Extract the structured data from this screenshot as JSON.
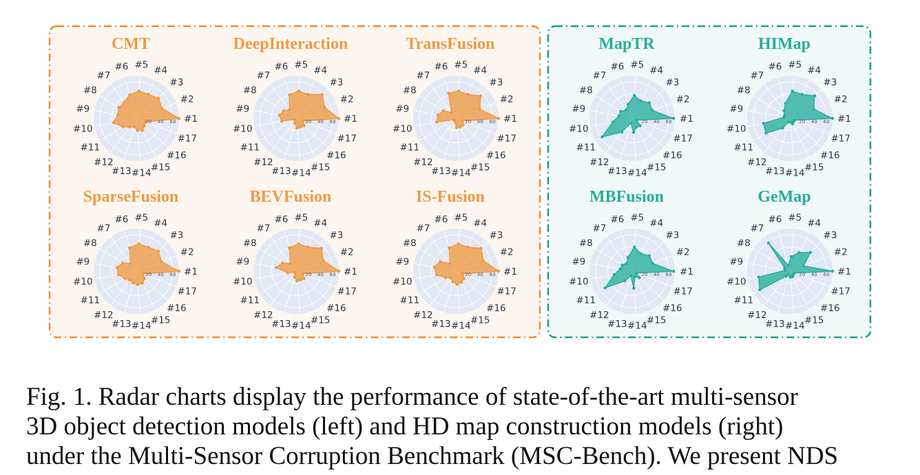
{
  "colors": {
    "left_panel_border": "#ef8b2c",
    "left_panel_bg": "#fdf6f0",
    "right_panel_border": "#1a9e8f",
    "right_panel_bg": "#f1f8f8",
    "radar_bg": "#e2e8f4",
    "orange": "#ef9a43",
    "teal": "#26ae9e"
  },
  "caption": {
    "line1": "Fig. 1.  Radar charts display the performance of state-of-the-art multi-sensor",
    "line2": "3D object detection models (left) and HD map construction models (right)",
    "line3": "under the Multi-Sensor Corruption Benchmark (MSC-Bench). We present NDS"
  },
  "chart_data": [
    {
      "type": "radar",
      "title": "CMT",
      "color": "orange",
      "categories": [
        "#1",
        "#2",
        "#3",
        "#4",
        "#5",
        "#6",
        "#7",
        "#8",
        "#9",
        "#10",
        "#11",
        "#12",
        "#13",
        "#14",
        "#15",
        "#16",
        "#17"
      ],
      "radial_ticks": [
        "20",
        "40",
        "60"
      ],
      "rlim": [
        0,
        70
      ],
      "values": [
        70,
        45,
        49,
        44,
        45,
        40,
        33,
        34,
        31,
        38,
        26,
        18,
        14,
        20,
        22,
        18,
        16
      ]
    },
    {
      "type": "radar",
      "title": "DeepInteraction",
      "color": "orange",
      "categories": [
        "#1",
        "#2",
        "#3",
        "#4",
        "#5",
        "#6",
        "#7",
        "#8",
        "#9",
        "#10",
        "#11",
        "#12",
        "#13",
        "#14",
        "#15",
        "#16",
        "#17"
      ],
      "radial_ticks": [
        "20",
        "40",
        "60"
      ],
      "rlim": [
        0,
        70
      ],
      "values": [
        70,
        50,
        58,
        44,
        45,
        40,
        18,
        24,
        28,
        24,
        3,
        3,
        8,
        16,
        16,
        18,
        12
      ]
    },
    {
      "type": "radar",
      "title": "TransFusion",
      "color": "orange",
      "categories": [
        "#1",
        "#2",
        "#3",
        "#4",
        "#5",
        "#6",
        "#7",
        "#8",
        "#9",
        "#10",
        "#11",
        "#12",
        "#13",
        "#14",
        "#15",
        "#16",
        "#17"
      ],
      "radial_ticks": [
        "20",
        "40",
        "60"
      ],
      "rlim": [
        0,
        70
      ],
      "values": [
        70,
        42,
        55,
        44,
        45,
        43,
        12,
        24,
        30,
        32,
        4,
        3,
        6,
        15,
        16,
        16,
        12
      ]
    },
    {
      "type": "radar",
      "title": "MapTR",
      "color": "teal",
      "categories": [
        "#1",
        "#2",
        "#3",
        "#4",
        "#5",
        "#6",
        "#7",
        "#8",
        "#9",
        "#10",
        "#11",
        "#12",
        "#13",
        "#14",
        "#15",
        "#16",
        "#17"
      ],
      "radial_ticks": [
        "20",
        "40",
        "60"
      ],
      "rlim": [
        0,
        70
      ],
      "values": [
        68,
        36,
        38,
        32,
        38,
        24,
        17,
        22,
        22,
        32,
        58,
        28,
        8,
        23,
        16,
        18,
        8
      ]
    },
    {
      "type": "radar",
      "title": "HIMap",
      "color": "teal",
      "categories": [
        "#1",
        "#2",
        "#3",
        "#4",
        "#5",
        "#6",
        "#7",
        "#8",
        "#9",
        "#10",
        "#11",
        "#12",
        "#13",
        "#14",
        "#15",
        "#16",
        "#17"
      ],
      "radial_ticks": [
        "20",
        "40",
        "60"
      ],
      "rlim": [
        0,
        70
      ],
      "values": [
        70,
        42,
        55,
        44,
        45,
        26,
        16,
        10,
        10,
        44,
        46,
        20,
        6,
        6,
        10,
        8,
        8
      ]
    },
    {
      "type": "radar",
      "title": "SparseFusion",
      "color": "orange",
      "categories": [
        "#1",
        "#2",
        "#3",
        "#4",
        "#5",
        "#6",
        "#7",
        "#8",
        "#9",
        "#10",
        "#11",
        "#12",
        "#13",
        "#14",
        "#15",
        "#16",
        "#17"
      ],
      "radial_ticks": [
        "20",
        "40",
        "60"
      ],
      "rlim": [
        0,
        70
      ],
      "values": [
        70,
        44,
        49,
        44,
        45,
        40,
        16,
        26,
        32,
        30,
        22,
        18,
        20,
        22,
        22,
        18,
        12
      ]
    },
    {
      "type": "radar",
      "title": "BEVFusion",
      "color": "orange",
      "categories": [
        "#1",
        "#2",
        "#3",
        "#4",
        "#5",
        "#6",
        "#7",
        "#8",
        "#9",
        "#10",
        "#11",
        "#12",
        "#13",
        "#14",
        "#15",
        "#16",
        "#17"
      ],
      "radial_ticks": [
        "20",
        "40",
        "60"
      ],
      "rlim": [
        0,
        70
      ],
      "values": [
        70,
        48,
        56,
        44,
        45,
        40,
        16,
        26,
        33,
        14,
        3,
        3,
        10,
        16,
        16,
        18,
        12
      ]
    },
    {
      "type": "radar",
      "title": "IS-Fusion",
      "color": "orange",
      "categories": [
        "#1",
        "#2",
        "#3",
        "#4",
        "#5",
        "#6",
        "#7",
        "#8",
        "#9",
        "#10",
        "#11",
        "#12",
        "#13",
        "#14",
        "#15",
        "#16",
        "#17"
      ],
      "radial_ticks": [
        "20",
        "40",
        "60"
      ],
      "rlim": [
        0,
        70
      ],
      "values": [
        70,
        48,
        56,
        44,
        45,
        40,
        16,
        30,
        36,
        32,
        20,
        14,
        18,
        22,
        20,
        18,
        12
      ]
    },
    {
      "type": "radar",
      "title": "MBFusion",
      "color": "teal",
      "categories": [
        "#1",
        "#2",
        "#3",
        "#4",
        "#5",
        "#6",
        "#7",
        "#8",
        "#9",
        "#10",
        "#11",
        "#12",
        "#13",
        "#14",
        "#15",
        "#16",
        "#17"
      ],
      "radial_ticks": [
        "20",
        "40",
        "60"
      ],
      "rlim": [
        0,
        70
      ],
      "values": [
        68,
        36,
        38,
        32,
        40,
        24,
        16,
        19,
        20,
        30,
        52,
        20,
        8,
        28,
        10,
        16,
        8
      ]
    },
    {
      "type": "radar",
      "title": "GeMap",
      "color": "teal",
      "categories": [
        "#1",
        "#2",
        "#3",
        "#4",
        "#5",
        "#6",
        "#7",
        "#8",
        "#9",
        "#10",
        "#11",
        "#12",
        "#13",
        "#14",
        "#15",
        "#16",
        "#17"
      ],
      "radial_ticks": [
        "20",
        "40",
        "60"
      ],
      "rlim": [
        0,
        70
      ],
      "values": [
        70,
        24,
        46,
        34,
        24,
        10,
        58,
        10,
        8,
        52,
        58,
        10,
        6,
        10,
        10,
        8,
        8
      ]
    }
  ]
}
